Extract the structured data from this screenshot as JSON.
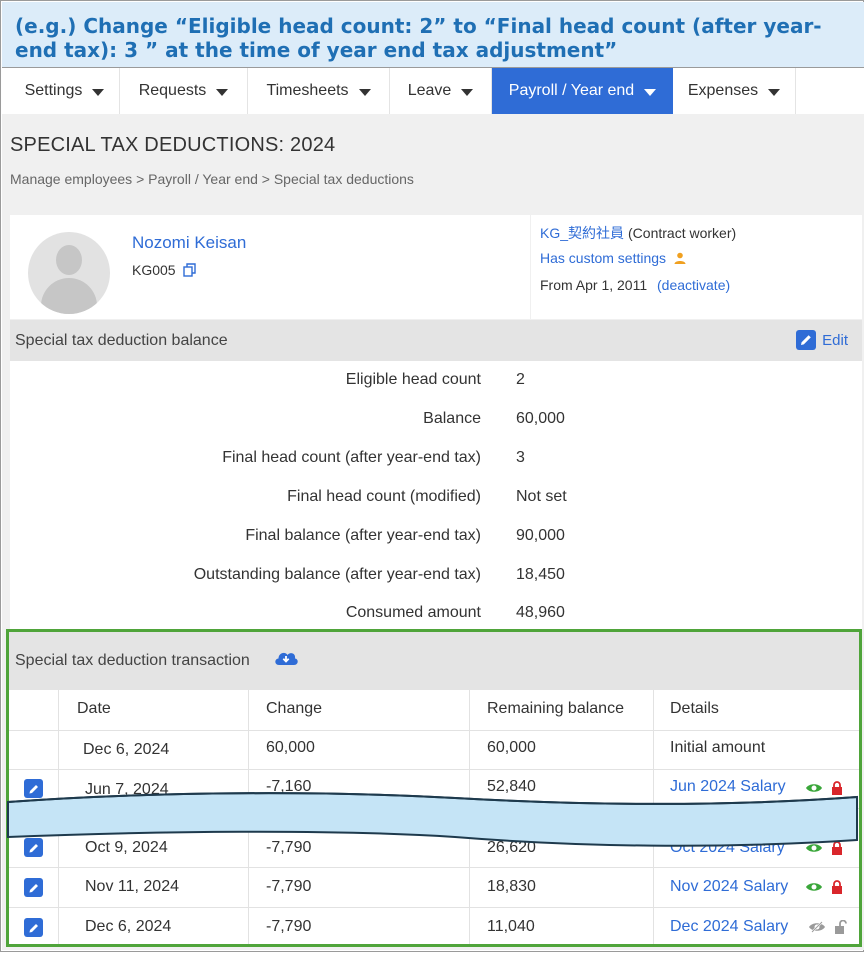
{
  "banner": {
    "text": "(e.g.) Change “Eligible head count: 2” to “Final head count (after year-end tax): 3 ” at the time of year end tax adjustment”"
  },
  "nav": {
    "items": [
      {
        "label": "Settings"
      },
      {
        "label": "Requests"
      },
      {
        "label": "Timesheets"
      },
      {
        "label": "Leave"
      },
      {
        "label": "Payroll / Year end"
      },
      {
        "label": "Expenses"
      }
    ],
    "active_index": 4
  },
  "page": {
    "title": "SPECIAL TAX DEDUCTIONS: 2024",
    "breadcrumb": "Manage employees > Payroll / Year end > Special tax deductions"
  },
  "employee": {
    "name": "Nozomi Keisan",
    "code": "KG005",
    "department": "KG_契約社員",
    "employment_type": "(Contract worker)",
    "custom_settings": "Has custom settings",
    "from": "From Apr 1, 2011",
    "deactivate": "(deactivate)"
  },
  "balance": {
    "section_title": "Special tax deduction balance",
    "edit_label": "Edit",
    "rows": [
      {
        "label": "Eligible head count",
        "value": "2"
      },
      {
        "label": "Balance",
        "value": "60,000"
      },
      {
        "label": "Final head count (after year-end tax)",
        "value": "3"
      },
      {
        "label": "Final head count (modified)",
        "value": "Not set"
      },
      {
        "label": "Final balance (after year-end tax)",
        "value": "90,000"
      },
      {
        "label": "Outstanding balance (after year-end tax)",
        "value": "18,450"
      },
      {
        "label": "Consumed amount",
        "value": "48,960"
      }
    ]
  },
  "transactions": {
    "section_title": "Special tax deduction transaction",
    "columns": [
      "Date",
      "Change",
      "Remaining balance",
      "Details"
    ],
    "rows": [
      {
        "date": "Dec 6, 2024",
        "change": "60,000",
        "remaining": "60,000",
        "details": "Initial amount"
      },
      {
        "date": "Jun 7, 2024",
        "change": "-7,160",
        "remaining": "52,840",
        "details": "Jun 2024 Salary"
      },
      {
        "date": "Oct 9, 2024",
        "change": "-7,790",
        "remaining": "26,620",
        "details": "Oct 2024 Salary"
      },
      {
        "date": "Nov 11, 2024",
        "change": "-7,790",
        "remaining": "18,830",
        "details": "Nov 2024 Salary"
      },
      {
        "date": "Dec 6, 2024",
        "change": "-7,790",
        "remaining": "11,040",
        "details": "Dec 2024 Salary"
      }
    ]
  },
  "colors": {
    "accent": "#2f6cd6",
    "banner_text": "#1f6fb4",
    "highlight_border": "#4fa43a",
    "eye_green": "#3aa63a",
    "lock_red": "#d9262b",
    "torn_fill": "#c5e4f6"
  }
}
